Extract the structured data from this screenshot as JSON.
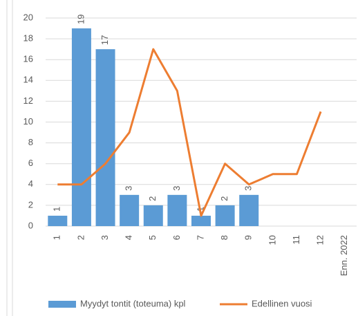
{
  "chart_data": {
    "type": "bar",
    "categories": [
      "1",
      "2",
      "3",
      "4",
      "5",
      "6",
      "7",
      "8",
      "9",
      "10",
      "11",
      "12",
      "Enn. 2022"
    ],
    "series": [
      {
        "name": "Myydyt tontit (toteuma) kpl",
        "type": "bar",
        "color": "#5b9bd5",
        "values": [
          1,
          19,
          17,
          3,
          2,
          3,
          1,
          2,
          3,
          null,
          null,
          null,
          null
        ]
      },
      {
        "name": "Edellinen vuosi",
        "type": "line",
        "color": "#ed7d31",
        "values": [
          4,
          4,
          6,
          9,
          17,
          13,
          1,
          6,
          4,
          5,
          5,
          11,
          null
        ]
      }
    ],
    "ylim": [
      0,
      20
    ],
    "yticks": [
      0,
      2,
      4,
      6,
      8,
      10,
      12,
      14,
      16,
      18,
      20
    ],
    "grid": true,
    "legend": "bottom"
  }
}
